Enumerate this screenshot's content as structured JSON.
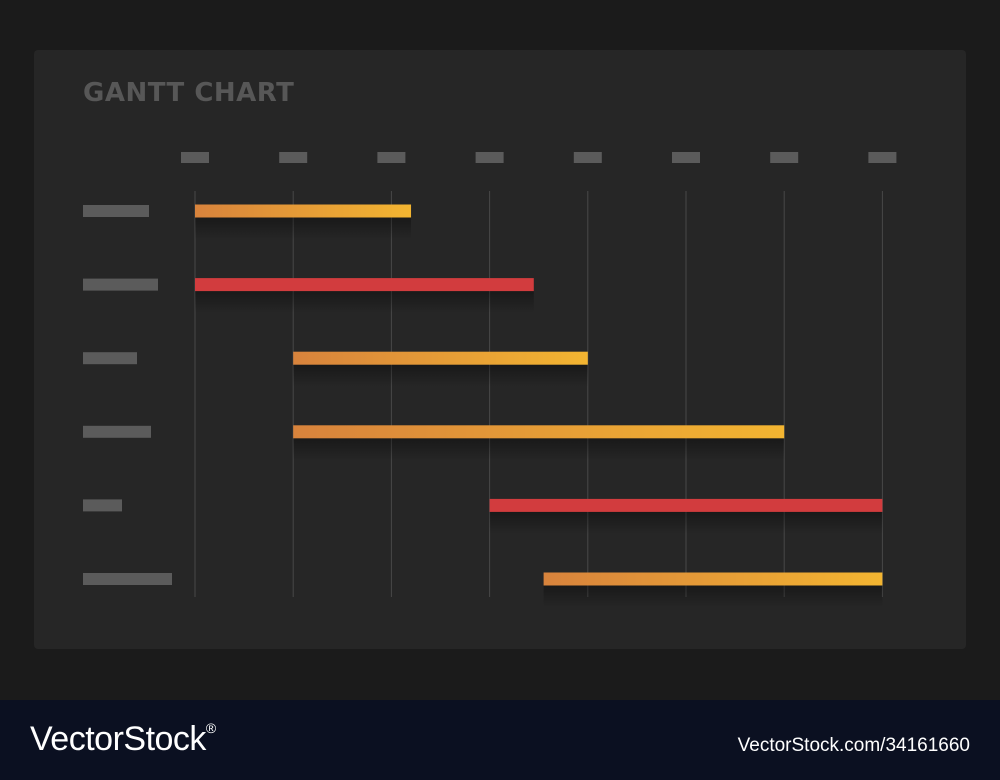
{
  "chart_data": {
    "type": "gantt",
    "title": "GANTT CHART",
    "x_ticks": 8,
    "x_range": [
      0,
      7
    ],
    "tasks": [
      {
        "start": 0.0,
        "end": 2.2,
        "color": "orange-yellow"
      },
      {
        "start": 0.0,
        "end": 3.45,
        "color": "red"
      },
      {
        "start": 1.0,
        "end": 4.0,
        "color": "orange-yellow"
      },
      {
        "start": 1.0,
        "end": 6.0,
        "color": "orange-yellow"
      },
      {
        "start": 3.0,
        "end": 7.0,
        "color": "red"
      },
      {
        "start": 3.55,
        "end": 7.0,
        "color": "orange-yellow"
      }
    ],
    "placeholder_label_widths": [
      66,
      75,
      54,
      68,
      39,
      89
    ],
    "grid": true
  },
  "colors": {
    "background": "#1b1b1b",
    "card": "#262626",
    "placeholder": "#5b5b5b",
    "gridline": "#484848",
    "orange_start": "#d8833c",
    "orange_end": "#f3b531",
    "red": "#d23c3e"
  },
  "footer": {
    "brand": "VectorStock",
    "brand_mark": "®",
    "image_id": "VectorStock.com/34161660"
  }
}
